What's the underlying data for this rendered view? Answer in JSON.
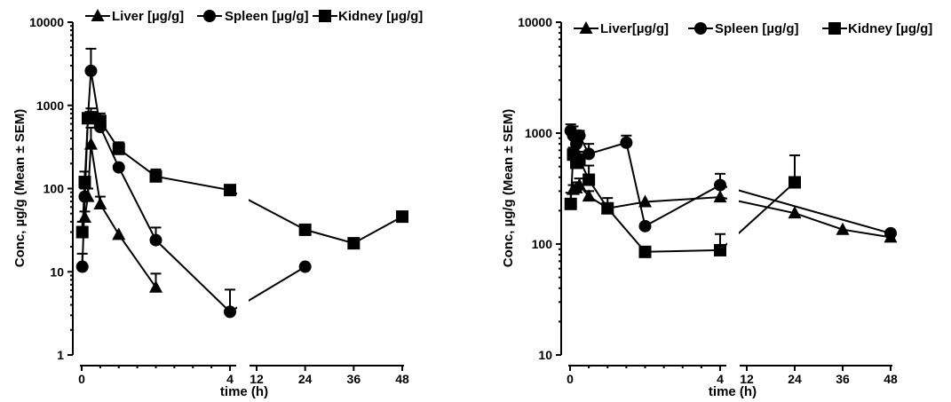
{
  "chart_data": [
    {
      "type": "line",
      "xlabel": "time (h)",
      "ylabel": "Conc,  µg/g (Mean ± SEM)",
      "y_scale": "log",
      "ylim": [
        1,
        10000
      ],
      "y_ticks": [
        "1",
        "10",
        "100",
        "1000",
        "10000"
      ],
      "x_axis_segments": [
        {
          "range": [
            0,
            4
          ],
          "ticks": [
            "0",
            "4"
          ]
        },
        {
          "range": [
            12,
            48
          ],
          "ticks": [
            "12",
            "24",
            "36",
            "48"
          ]
        }
      ],
      "legend_position": "top",
      "series": [
        {
          "name": "Liver [µg/g]",
          "marker": "triangle",
          "x": [
            0.083,
            0.167,
            0.25,
            0.5,
            1,
            2
          ],
          "y": [
            45,
            80,
            340,
            65,
            28,
            6.5
          ],
          "err": [
            8,
            20,
            200,
            15,
            0,
            3
          ]
        },
        {
          "name": "Spleen [µg/g]",
          "marker": "circle",
          "x": [
            0.017,
            0.083,
            0.167,
            0.25,
            0.5,
            1,
            2,
            4,
            24
          ],
          "y": [
            11.5,
            80,
            700,
            2600,
            550,
            180,
            24,
            3.3,
            11.5
          ],
          "err": [
            5,
            20,
            100,
            2200,
            200,
            0,
            10,
            2.8,
            0
          ]
        },
        {
          "name": "Kidney [µg/g]",
          "marker": "square",
          "x": [
            0.017,
            0.083,
            0.167,
            0.25,
            0.5,
            1,
            2,
            4,
            24,
            36,
            48
          ],
          "y": [
            30,
            120,
            700,
            720,
            650,
            300,
            140,
            96,
            32,
            22,
            46
          ],
          "err": [
            10,
            40,
            100,
            200,
            150,
            60,
            30,
            0,
            0,
            0,
            7
          ]
        }
      ]
    },
    {
      "type": "line",
      "xlabel": "time (h)",
      "ylabel": "Conc,  µg/g (Mean ± SEM)",
      "y_scale": "log",
      "ylim": [
        10,
        10000
      ],
      "y_ticks": [
        "10",
        "100",
        "1000",
        "10000"
      ],
      "x_axis_segments": [
        {
          "range": [
            0,
            4
          ],
          "ticks": [
            "0",
            "4"
          ]
        },
        {
          "range": [
            12,
            48
          ],
          "ticks": [
            "12",
            "24",
            "36",
            "48"
          ]
        }
      ],
      "legend_position": "top",
      "series": [
        {
          "name": "Liver[µg/g]",
          "marker": "triangle",
          "x": [
            0.083,
            0.167,
            0.25,
            0.5,
            1,
            2,
            4,
            24,
            36,
            48
          ],
          "y": [
            310,
            320,
            340,
            270,
            210,
            240,
            265,
            190,
            135,
            115
          ],
          "err": [
            30,
            40,
            50,
            30,
            20,
            0,
            0,
            0,
            0,
            0
          ]
        },
        {
          "name": "Spleen [µg/g]",
          "marker": "circle",
          "x": [
            0.017,
            0.083,
            0.167,
            0.25,
            0.5,
            1.5,
            2,
            4,
            48
          ],
          "y": [
            1050,
            950,
            800,
            950,
            650,
            820,
            145,
            340,
            125
          ],
          "err": [
            150,
            200,
            100,
            100,
            150,
            130,
            0,
            90,
            0
          ]
        },
        {
          "name": "Kidney [µg/g]",
          "marker": "square",
          "x": [
            0.017,
            0.083,
            0.167,
            0.25,
            0.5,
            1,
            2,
            4,
            24
          ],
          "y": [
            230,
            640,
            540,
            580,
            380,
            210,
            85,
            88,
            360
          ],
          "err": [
            60,
            100,
            80,
            100,
            130,
            50,
            0,
            35,
            270
          ]
        }
      ]
    }
  ]
}
